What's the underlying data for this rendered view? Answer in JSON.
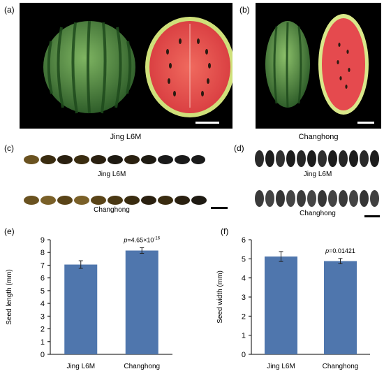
{
  "panels": {
    "a": {
      "letter": "(a)",
      "caption": "Jing L6M"
    },
    "b": {
      "letter": "(b)",
      "caption": "Changhong"
    },
    "c": {
      "letter": "(c)",
      "top_label": "Jing L6M",
      "bottom_label": "Changhong"
    },
    "d": {
      "letter": "(d)",
      "top_label": "Jing L6M",
      "bottom_label": "Changhong"
    },
    "e": {
      "letter": "(e)"
    },
    "f": {
      "letter": "(f)"
    }
  },
  "colors": {
    "bar": "#4f76ad",
    "watermelon_rind": "#3f7a3a",
    "watermelon_flesh": "#e4484c",
    "seed_light": "#5a4214",
    "seed_dark": "#1c1c1c"
  },
  "chart_data": [
    {
      "type": "bar",
      "categories": [
        "Jing L6M",
        "Changhong"
      ],
      "values": [
        7.05,
        8.15
      ],
      "errors": [
        0.3,
        0.22
      ],
      "ylabel": "Seed length (mm)",
      "ylim": [
        0,
        9
      ],
      "yticks": [
        "0",
        "1",
        "2",
        "3",
        "4",
        "5",
        "6",
        "7",
        "8",
        "9"
      ],
      "annotation_p": "p",
      "annotation_value": "=4.65×10",
      "annotation_exp": "-16"
    },
    {
      "type": "bar",
      "categories": [
        "Jing L6M",
        "Changhong"
      ],
      "values": [
        5.12,
        4.88
      ],
      "errors": [
        0.26,
        0.14
      ],
      "ylabel": "Seed width (mm)",
      "ylim": [
        0,
        6
      ],
      "yticks": [
        "0",
        "1",
        "2",
        "3",
        "4",
        "5",
        "6"
      ],
      "annotation_p": "p",
      "annotation_value": "=0.01421",
      "annotation_exp": ""
    }
  ]
}
